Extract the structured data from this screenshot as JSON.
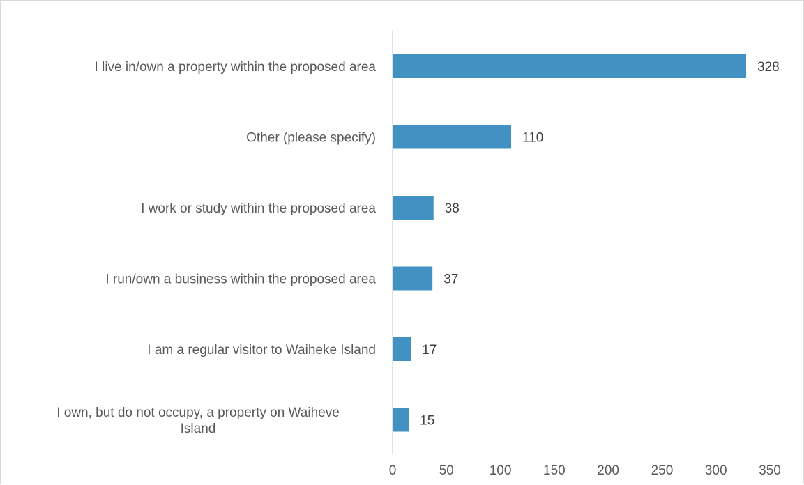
{
  "chart_data": {
    "type": "bar",
    "orientation": "horizontal",
    "title": "",
    "xlabel": "",
    "ylabel": "",
    "categories": [
      [
        "I live in/own a property within the proposed area"
      ],
      [
        "Other (please specify)"
      ],
      [
        "I work or study within the proposed area"
      ],
      [
        "I run/own a business within the proposed area"
      ],
      [
        "I am a regular visitor to Waiheke Island"
      ],
      [
        "I own, but do not occupy, a property on Waiheve",
        "Island"
      ]
    ],
    "values": [
      328,
      110,
      38,
      37,
      17,
      15
    ],
    "xlim": [
      0,
      350
    ],
    "ticks": [
      "0",
      "50",
      "100",
      "150",
      "200",
      "250",
      "300",
      "350"
    ],
    "tick_values": [
      0,
      50,
      100,
      150,
      200,
      250,
      300,
      350
    ],
    "grid": false,
    "legend": "none",
    "bar_color": "#4191c2",
    "axis_color": "#d9d9d9"
  }
}
